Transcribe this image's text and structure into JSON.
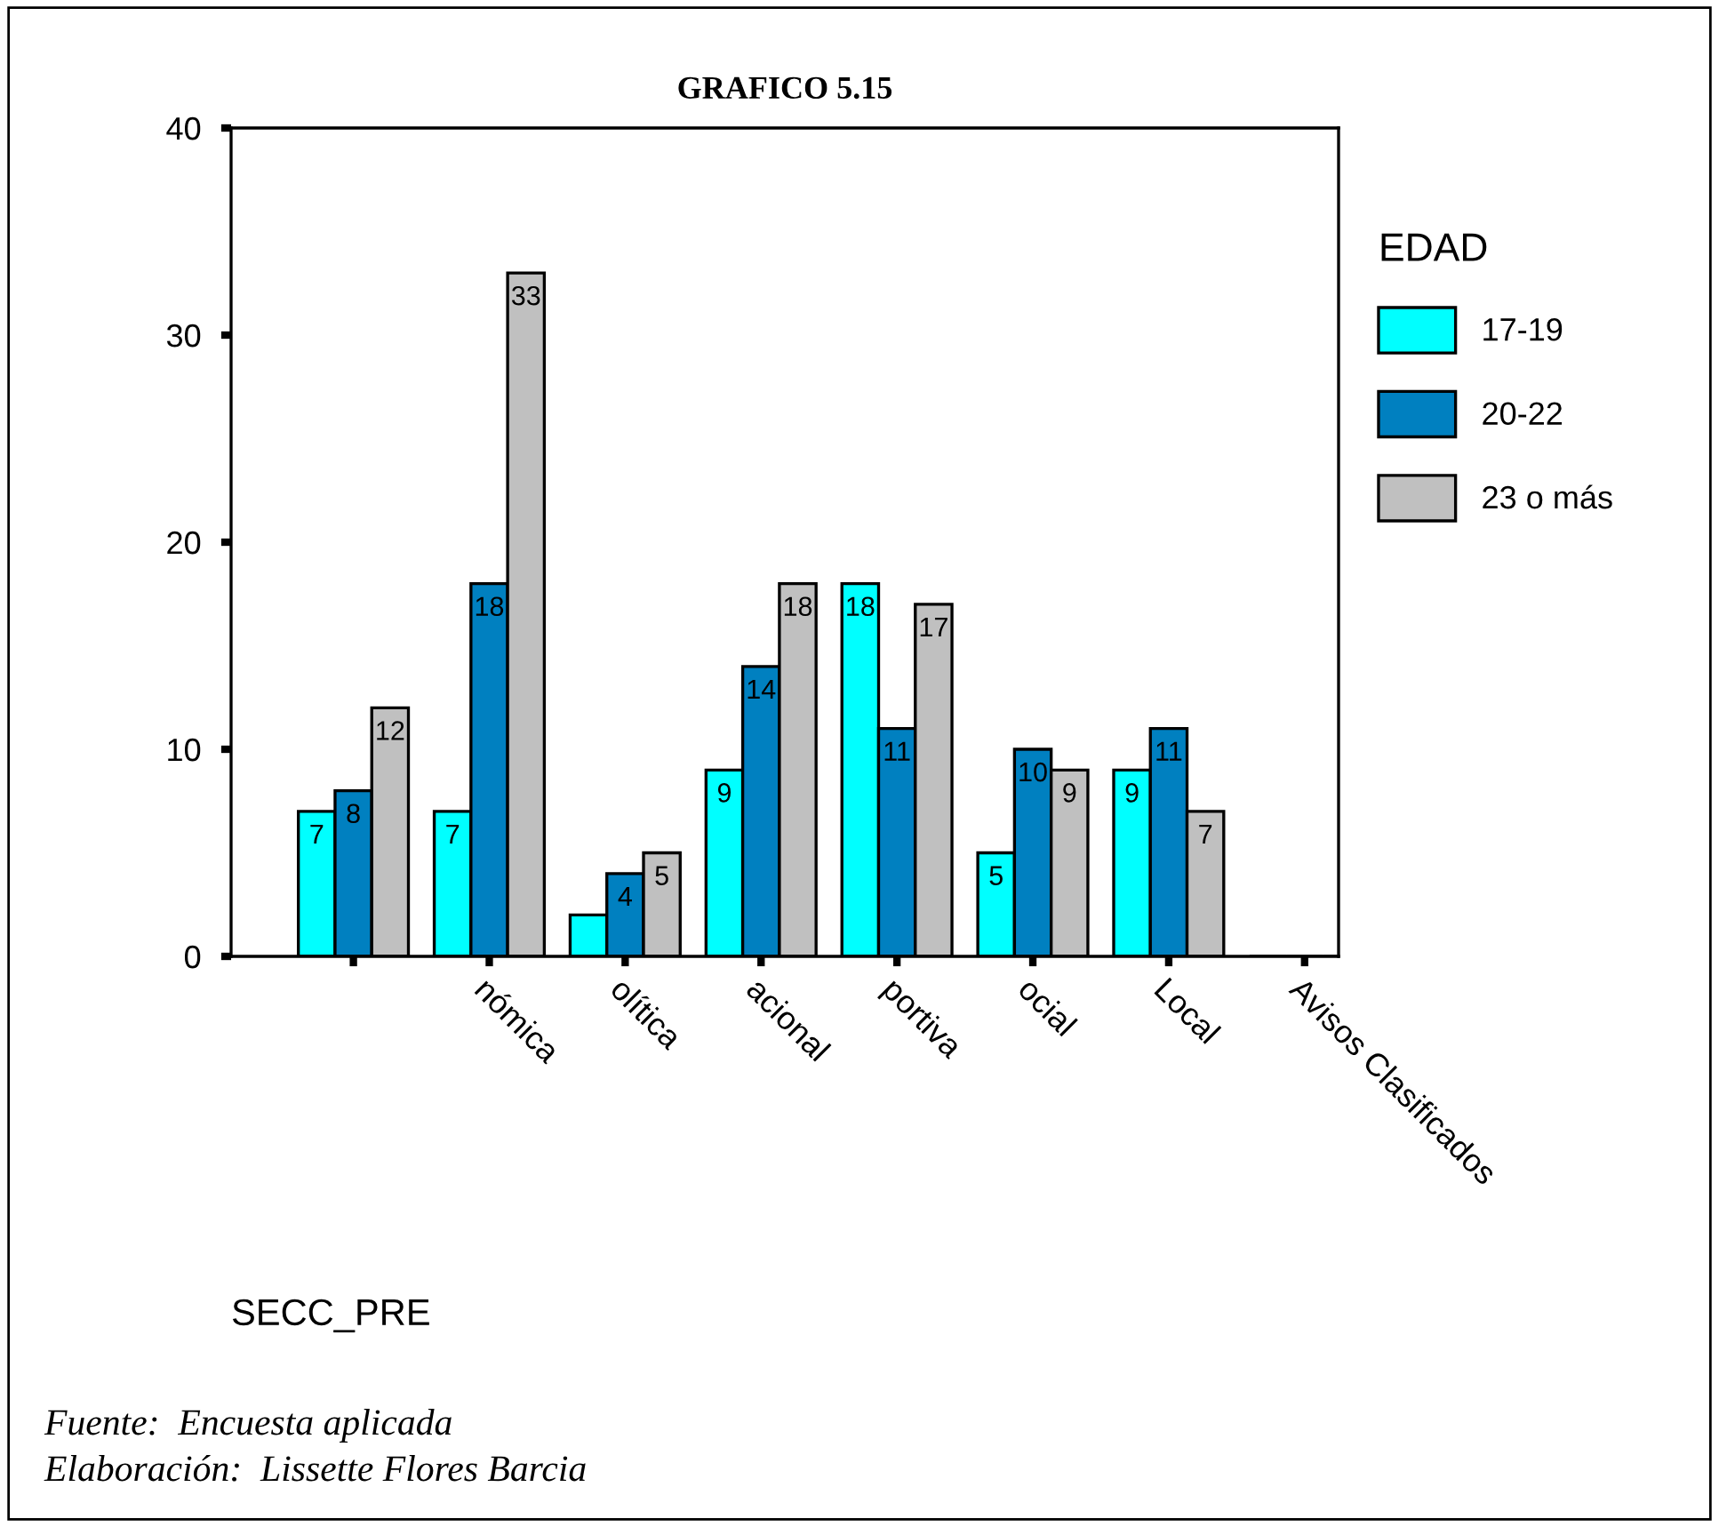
{
  "chart_data": {
    "type": "bar",
    "title": "GRAFICO 5.15",
    "xlabel": "SECC_PRE",
    "legend_title": "EDAD",
    "categories": [
      null,
      "nómica",
      "olítica",
      "acional",
      "portiva",
      "ocial",
      "Local",
      "Avisos Clasificados"
    ],
    "series": [
      {
        "name": "17-19",
        "color": "#00ffff",
        "values": [
          7,
          7,
          2,
          9,
          18,
          5,
          9,
          null
        ],
        "value_labels": [
          "7",
          "7",
          null,
          "9",
          "18",
          "5",
          "9",
          null
        ]
      },
      {
        "name": "20-22",
        "color": "#0080c0",
        "values": [
          8,
          18,
          4,
          14,
          11,
          10,
          11,
          null
        ],
        "value_labels": [
          "8",
          "18",
          "4",
          "14",
          "11",
          "10",
          "11",
          null
        ]
      },
      {
        "name": "23 o más",
        "color": "#c0c0c0",
        "values": [
          12,
          33,
          5,
          18,
          17,
          9,
          7,
          null
        ],
        "value_labels": [
          "12",
          "33",
          "5",
          "18",
          "17",
          "9",
          "7",
          null
        ]
      }
    ],
    "ylim": [
      0,
      40
    ],
    "yticks": [
      0,
      10,
      20,
      30,
      40
    ],
    "grid": false,
    "legend": "right",
    "annotations": [
      "Fuente:  Encuesta aplicada",
      "Elaboración:  Lissette Flores Barcia"
    ]
  }
}
